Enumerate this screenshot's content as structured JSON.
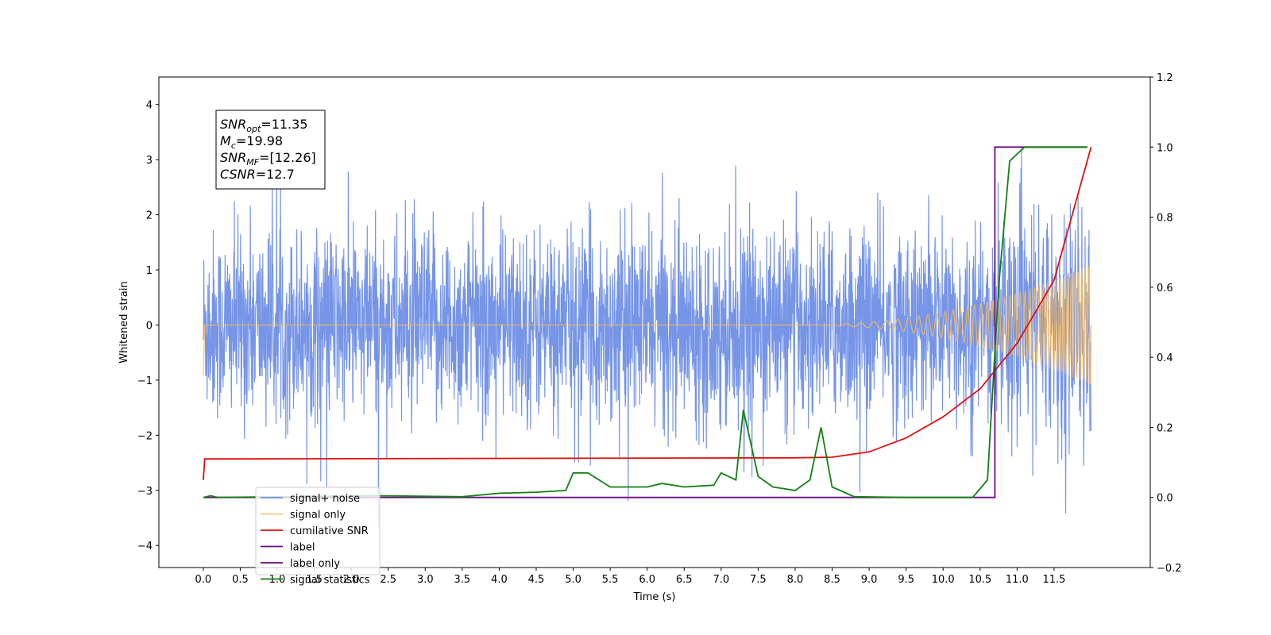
{
  "chart_data": {
    "type": "line",
    "xlabel": "Time (s)",
    "ylabel": "Whitened strain",
    "xlim": [
      -0.6,
      12.8
    ],
    "xticks": [
      "0.0",
      "0.5",
      "1.0",
      "1.5",
      "2.0",
      "2.5",
      "3.0",
      "3.5",
      "4.0",
      "4.5",
      "5.0",
      "5.5",
      "6.0",
      "6.5",
      "7.0",
      "7.5",
      "8.0",
      "8.5",
      "9.0",
      "9.5",
      "10.0",
      "10.5",
      "11.0",
      "11.5"
    ],
    "y_left": {
      "lim": [
        -4.4,
        4.5
      ],
      "ticks": [
        "−4",
        "−3",
        "−2",
        "−1",
        "0",
        "1",
        "2",
        "3",
        "4"
      ]
    },
    "y_right": {
      "lim": [
        -0.2,
        1.2
      ],
      "ticks": [
        "−0.2",
        "0.0",
        "0.2",
        "0.4",
        "0.6",
        "0.8",
        "1.0",
        "1.2"
      ]
    },
    "annotation": {
      "lines": [
        {
          "base": "SNR",
          "sub": "opt",
          "value": "=11.35"
        },
        {
          "base": "M",
          "sub": "c",
          "value": "=19.98"
        },
        {
          "base": "SNR",
          "sub": "MF",
          "value": "=[12.26]"
        },
        {
          "base": "CSNR",
          "sub": "",
          "value": "=12.7"
        }
      ]
    },
    "series": [
      {
        "name": "signal+ noise",
        "axis": "left",
        "color": "#6f8fe6",
        "description_points": {
          "x_range": [
            0.0,
            12.0
          ],
          "envelope_typical": [
            -2.0,
            2.0
          ],
          "peaks_max": 4.1,
          "peaks_min": -4.0
        }
      },
      {
        "name": "signal only",
        "axis": "left",
        "color": "#f5b75c",
        "chirp": {
          "start": 0.0,
          "end": 12.0,
          "amplitude_end": 1.1,
          "flat_until": 8.0
        }
      },
      {
        "name": "cumilative SNR",
        "axis": "right",
        "color": "#e01010",
        "points": [
          [
            0.0,
            0.05
          ],
          [
            0.02,
            0.11
          ],
          [
            8.0,
            0.113
          ],
          [
            8.5,
            0.115
          ],
          [
            9.0,
            0.13
          ],
          [
            9.5,
            0.17
          ],
          [
            10.0,
            0.23
          ],
          [
            10.5,
            0.31
          ],
          [
            11.0,
            0.44
          ],
          [
            11.5,
            0.62
          ],
          [
            12.0,
            1.0
          ]
        ]
      },
      {
        "name": "label",
        "axis": "right",
        "color": "#6a0d83",
        "points": [
          [
            0.0,
            0.0
          ],
          [
            10.7,
            0.0
          ],
          [
            10.7,
            1.0
          ],
          [
            11.95,
            1.0
          ]
        ]
      },
      {
        "name": "label only",
        "axis": "right",
        "color": "#6a0d83",
        "hidden_in_plot": true
      },
      {
        "name": "signal statistics",
        "axis": "right",
        "color": "#118011",
        "points": [
          [
            0.0,
            0.0
          ],
          [
            0.1,
            0.005
          ],
          [
            0.2,
            0.0
          ],
          [
            2.3,
            0.005
          ],
          [
            3.5,
            0.002
          ],
          [
            4.0,
            0.012
          ],
          [
            4.5,
            0.015
          ],
          [
            4.9,
            0.02
          ],
          [
            5.0,
            0.07
          ],
          [
            5.2,
            0.07
          ],
          [
            5.5,
            0.03
          ],
          [
            6.0,
            0.03
          ],
          [
            6.2,
            0.04
          ],
          [
            6.5,
            0.03
          ],
          [
            6.9,
            0.035
          ],
          [
            7.0,
            0.07
          ],
          [
            7.2,
            0.05
          ],
          [
            7.3,
            0.25
          ],
          [
            7.5,
            0.06
          ],
          [
            7.7,
            0.03
          ],
          [
            8.0,
            0.02
          ],
          [
            8.2,
            0.05
          ],
          [
            8.35,
            0.2
          ],
          [
            8.5,
            0.03
          ],
          [
            8.8,
            0.002
          ],
          [
            9.5,
            0.0
          ],
          [
            10.4,
            0.0
          ],
          [
            10.6,
            0.05
          ],
          [
            10.75,
            0.6
          ],
          [
            10.9,
            0.96
          ],
          [
            11.1,
            1.0
          ],
          [
            11.95,
            1.0
          ]
        ]
      }
    ],
    "legend": {
      "placement": "lower-left",
      "entries": [
        "signal+ noise",
        "signal only",
        "cumilative SNR",
        "label",
        "label only",
        "signal statistics"
      ]
    },
    "grid": false
  }
}
